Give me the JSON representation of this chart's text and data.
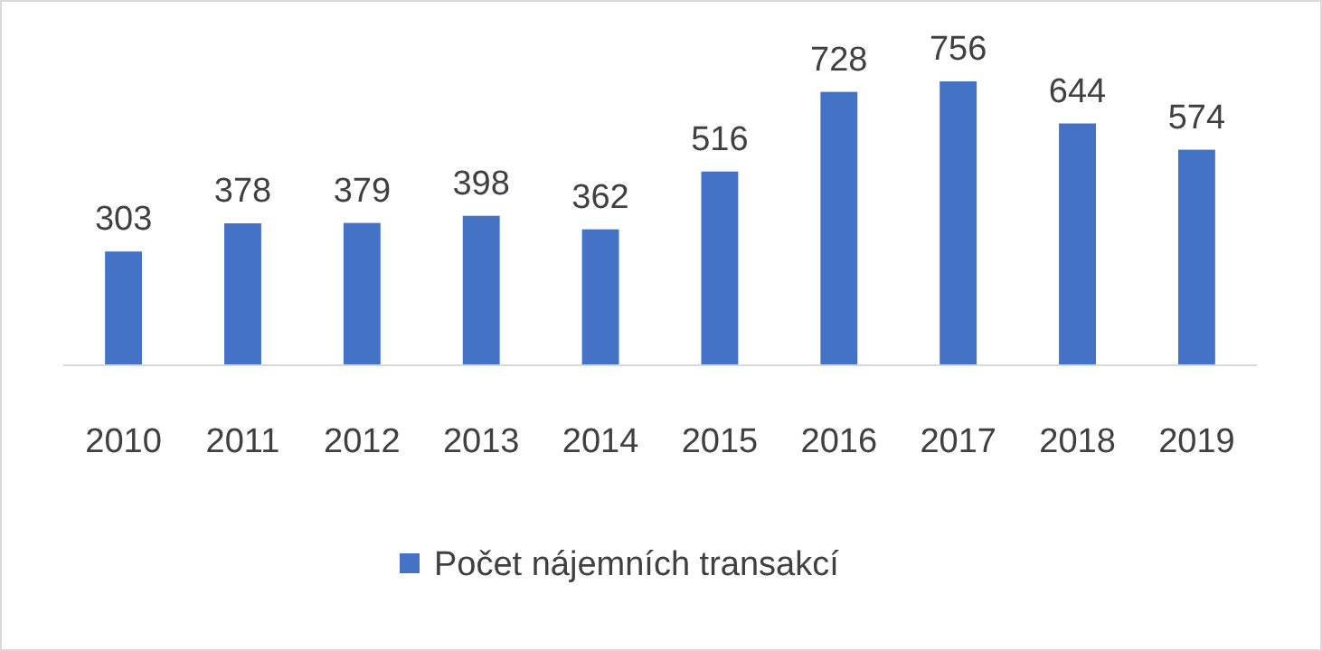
{
  "chart_data": {
    "type": "bar",
    "categories": [
      "2010",
      "2011",
      "2012",
      "2013",
      "2014",
      "2015",
      "2016",
      "2017",
      "2018",
      "2019"
    ],
    "series": [
      {
        "name": "Počet nájemních transakcí",
        "color": "#4472c4",
        "values": [
          303,
          378,
          379,
          398,
          362,
          516,
          728,
          756,
          644,
          574
        ]
      }
    ],
    "data_labels": true,
    "legend": "bottom",
    "grid": false
  }
}
